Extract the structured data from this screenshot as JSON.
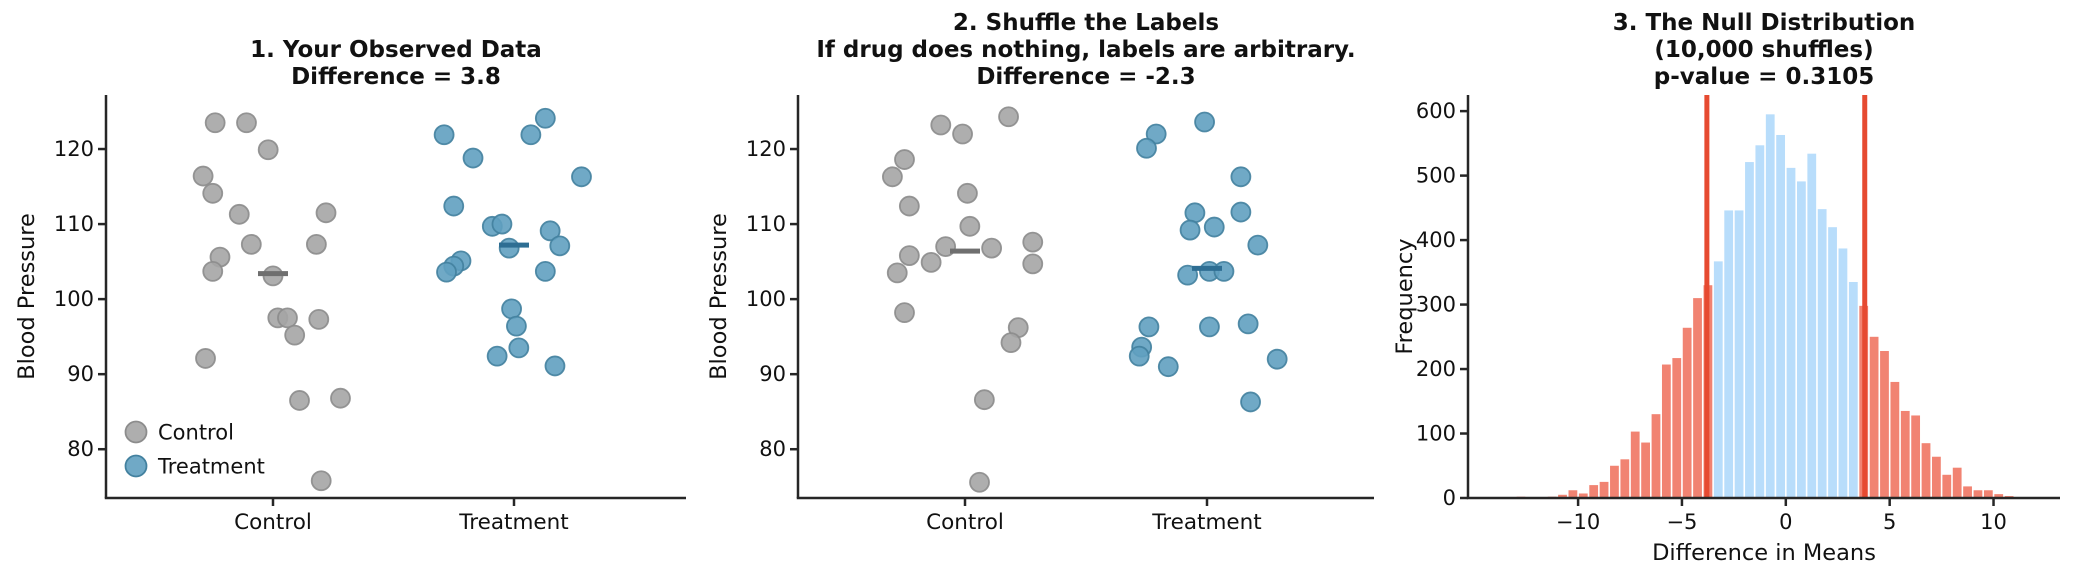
{
  "colors": {
    "background": "#ffffff",
    "axis": "#262626",
    "text": "#111111",
    "control_fill": "#a5a5a5",
    "control_edge": "#8c8c8c",
    "treatment_fill": "#60a0c0",
    "treatment_edge": "#43819f",
    "control_mean_line": "#6f6f6f",
    "treatment_mean_line": "#2e6e93",
    "hist_blue": "#b8ddfb",
    "hist_red": "#f18372",
    "cutoff_line_red": "#e64a31"
  },
  "chart_data": [
    {
      "type": "scatter",
      "id": "observed-data",
      "title_lines": [
        "1. Your Observed Data",
        "Difference = 3.8"
      ],
      "ylabel": "Blood Pressure",
      "yticks": [
        80,
        90,
        100,
        110,
        120
      ],
      "ylim": [
        73.5,
        127.2
      ],
      "categories": [
        "Control",
        "Treatment"
      ],
      "legend": [
        {
          "label": "Control",
          "fill": "control_fill",
          "edge": "control_edge"
        },
        {
          "label": "Treatment",
          "fill": "treatment_fill",
          "edge": "treatment_edge"
        }
      ],
      "observed_difference": 3.8,
      "series": [
        {
          "name": "Control",
          "fill": "control_fill",
          "edge": "control_edge",
          "mean": 103.4,
          "mean_color": "control_mean_line",
          "points": [
            [
              -0.24,
              123.5
            ],
            [
              -0.11,
              123.5
            ],
            [
              -0.02,
              119.9
            ],
            [
              -0.29,
              116.4
            ],
            [
              -0.25,
              114.1
            ],
            [
              -0.14,
              111.3
            ],
            [
              0.22,
              111.5
            ],
            [
              -0.09,
              107.3
            ],
            [
              0.18,
              107.3
            ],
            [
              -0.22,
              105.6
            ],
            [
              -0.25,
              103.7
            ],
            [
              0.0,
              103.1
            ],
            [
              0.02,
              97.5
            ],
            [
              0.06,
              97.5
            ],
            [
              0.19,
              97.3
            ],
            [
              0.09,
              95.2
            ],
            [
              -0.28,
              92.1
            ],
            [
              0.11,
              86.5
            ],
            [
              0.28,
              86.8
            ],
            [
              0.2,
              75.8
            ]
          ]
        },
        {
          "name": "Treatment",
          "fill": "treatment_fill",
          "edge": "treatment_edge",
          "mean": 107.2,
          "mean_color": "treatment_mean_line",
          "points": [
            [
              -0.29,
              121.9
            ],
            [
              0.07,
              121.9
            ],
            [
              0.13,
              124.1
            ],
            [
              -0.17,
              118.8
            ],
            [
              0.28,
              116.3
            ],
            [
              -0.25,
              112.4
            ],
            [
              -0.09,
              109.7
            ],
            [
              -0.05,
              110.0
            ],
            [
              0.15,
              109.1
            ],
            [
              -0.02,
              106.8
            ],
            [
              0.19,
              107.1
            ],
            [
              -0.22,
              105.1
            ],
            [
              -0.25,
              104.4
            ],
            [
              -0.28,
              103.6
            ],
            [
              0.13,
              103.7
            ],
            [
              -0.01,
              98.7
            ],
            [
              0.01,
              96.4
            ],
            [
              0.02,
              93.5
            ],
            [
              -0.07,
              92.4
            ],
            [
              0.17,
              91.1
            ]
          ]
        }
      ]
    },
    {
      "type": "scatter",
      "id": "shuffled-labels",
      "title_lines": [
        "2. Shuffle the Labels",
        "If drug does nothing, labels are arbitrary.",
        "Difference = -2.3"
      ],
      "ylabel": "Blood Pressure",
      "yticks": [
        80,
        90,
        100,
        110,
        120
      ],
      "ylim": [
        73.5,
        127.2
      ],
      "categories": [
        "Control",
        "Treatment"
      ],
      "legend": [],
      "observed_difference": -2.3,
      "series": [
        {
          "name": "Control",
          "fill": "control_fill",
          "edge": "control_edge",
          "mean": 106.4,
          "mean_color": "control_mean_line",
          "points": [
            [
              0.18,
              124.3
            ],
            [
              -0.1,
              123.2
            ],
            [
              -0.01,
              122.0
            ],
            [
              -0.25,
              118.6
            ],
            [
              -0.3,
              116.3
            ],
            [
              0.01,
              114.1
            ],
            [
              -0.23,
              112.4
            ],
            [
              0.02,
              109.7
            ],
            [
              -0.08,
              107.0
            ],
            [
              0.11,
              106.8
            ],
            [
              0.28,
              107.6
            ],
            [
              -0.23,
              105.8
            ],
            [
              -0.14,
              104.9
            ],
            [
              0.28,
              104.7
            ],
            [
              -0.28,
              103.5
            ],
            [
              -0.25,
              98.2
            ],
            [
              0.22,
              96.2
            ],
            [
              0.19,
              94.2
            ],
            [
              0.08,
              86.6
            ],
            [
              0.06,
              75.6
            ]
          ]
        },
        {
          "name": "Treatment",
          "fill": "treatment_fill",
          "edge": "treatment_edge",
          "mean": 104.1,
          "mean_color": "treatment_mean_line",
          "points": [
            [
              -0.01,
              123.6
            ],
            [
              -0.21,
              122.0
            ],
            [
              -0.25,
              120.1
            ],
            [
              0.14,
              116.3
            ],
            [
              -0.05,
              111.5
            ],
            [
              0.14,
              111.6
            ],
            [
              -0.07,
              109.2
            ],
            [
              0.03,
              109.6
            ],
            [
              0.21,
              107.2
            ],
            [
              -0.08,
              103.2
            ],
            [
              0.01,
              103.7
            ],
            [
              0.07,
              103.7
            ],
            [
              -0.24,
              96.3
            ],
            [
              0.01,
              96.3
            ],
            [
              0.17,
              96.7
            ],
            [
              -0.27,
              93.6
            ],
            [
              -0.28,
              92.4
            ],
            [
              -0.16,
              91.0
            ],
            [
              0.29,
              92.0
            ],
            [
              0.18,
              86.3
            ]
          ]
        }
      ]
    },
    {
      "type": "histogram",
      "id": "null-distribution",
      "title_lines": [
        "3. The Null Distribution",
        "(10,000 shuffles)",
        "p-value = 0.3105"
      ],
      "xlabel": "Difference in Means",
      "ylabel": "Frequency",
      "xticks": [
        -10,
        -5,
        0,
        5,
        10
      ],
      "yticks": [
        0,
        100,
        200,
        300,
        400,
        500,
        600
      ],
      "xlim": [
        -15.3,
        13.2
      ],
      "ylim": [
        0,
        625
      ],
      "bin_width": 0.5,
      "n_shuffles": 10000,
      "p_value": 0.3105,
      "cutoff_lines": [
        -3.8,
        3.8
      ],
      "bars": [
        [
          -12.75,
          2,
          "r"
        ],
        [
          -11.25,
          2,
          "r"
        ],
        [
          -10.75,
          5,
          "r"
        ],
        [
          -10.25,
          12,
          "r"
        ],
        [
          -9.75,
          7,
          "r"
        ],
        [
          -9.25,
          20,
          "r"
        ],
        [
          -8.75,
          25,
          "r"
        ],
        [
          -8.25,
          50,
          "r"
        ],
        [
          -7.75,
          60,
          "r"
        ],
        [
          -7.25,
          103,
          "r"
        ],
        [
          -6.75,
          86,
          "r"
        ],
        [
          -6.25,
          130,
          "r"
        ],
        [
          -5.75,
          207,
          "r"
        ],
        [
          -5.25,
          217,
          "r"
        ],
        [
          -4.75,
          264,
          "r"
        ],
        [
          -4.25,
          310,
          "r"
        ],
        [
          -3.75,
          330,
          "r"
        ],
        [
          -3.25,
          367,
          "b"
        ],
        [
          -2.75,
          446,
          "b"
        ],
        [
          -2.25,
          446,
          "b"
        ],
        [
          -1.75,
          521,
          "b"
        ],
        [
          -1.25,
          547,
          "b"
        ],
        [
          -0.75,
          595,
          "b"
        ],
        [
          -0.25,
          563,
          "b"
        ],
        [
          0.25,
          512,
          "b"
        ],
        [
          0.75,
          491,
          "b"
        ],
        [
          1.25,
          534,
          "b"
        ],
        [
          1.75,
          448,
          "b"
        ],
        [
          2.25,
          420,
          "b"
        ],
        [
          2.75,
          387,
          "b"
        ],
        [
          3.25,
          335,
          "b"
        ],
        [
          3.75,
          298,
          "r"
        ],
        [
          4.25,
          250,
          "r"
        ],
        [
          4.75,
          228,
          "r"
        ],
        [
          5.25,
          180,
          "r"
        ],
        [
          5.75,
          135,
          "r"
        ],
        [
          6.25,
          128,
          "r"
        ],
        [
          6.75,
          85,
          "r"
        ],
        [
          7.25,
          64,
          "r"
        ],
        [
          7.75,
          36,
          "r"
        ],
        [
          8.25,
          47,
          "r"
        ],
        [
          8.75,
          18,
          "r"
        ],
        [
          9.25,
          12,
          "r"
        ],
        [
          9.75,
          12,
          "r"
        ],
        [
          10.25,
          6,
          "r"
        ],
        [
          10.75,
          3,
          "r"
        ]
      ]
    }
  ]
}
